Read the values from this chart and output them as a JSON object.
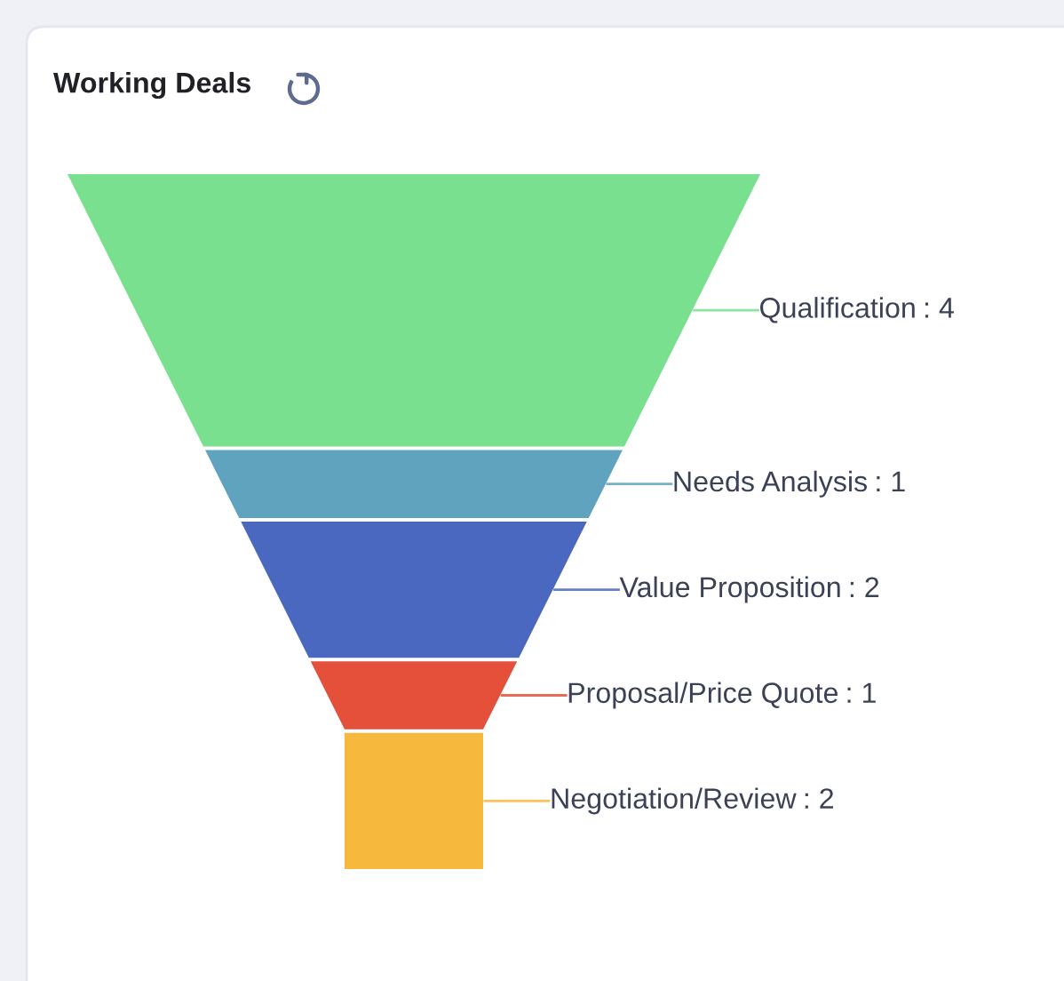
{
  "chart_data": {
    "type": "other",
    "title": "Working Deals",
    "categories": [
      "Qualification",
      "Needs Analysis",
      "Value Proposition",
      "Proposal/Price Quote",
      "Negotiation/Review"
    ],
    "values": [
      4,
      1,
      2,
      1,
      2
    ],
    "value_labels": [
      ": 4",
      ": 1",
      ": 2",
      ": 1",
      ": 2"
    ],
    "colors": [
      "#79e08f",
      "#5fa3bf",
      "#4a68bf",
      "#e4503a",
      "#f6b83d"
    ]
  }
}
